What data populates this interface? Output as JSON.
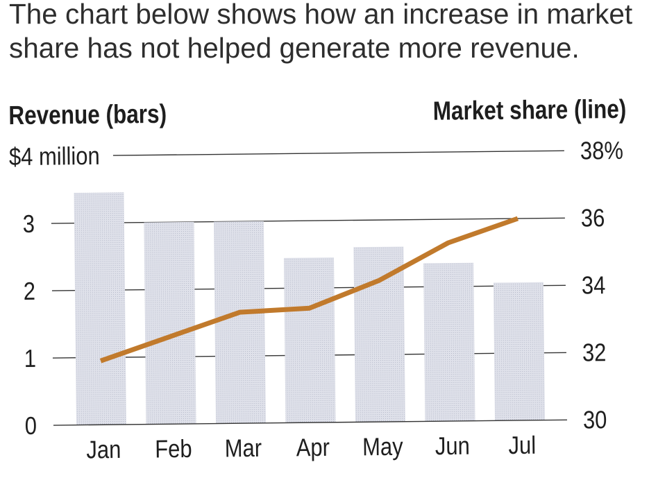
{
  "description": {
    "line1": "The chart below shows how an increase in market",
    "line2": "share has not helped generate more revenue."
  },
  "chart_data": {
    "type": "bar",
    "categories": [
      "Jan",
      "Feb",
      "Mar",
      "Apr",
      "May",
      "Jun",
      "Jul"
    ],
    "ylabel": "Revenue (bars)",
    "y2label": "Market share (line)",
    "ylim": [
      0,
      4
    ],
    "y2lim": [
      30,
      38
    ],
    "yticks": [
      0,
      1,
      2,
      3,
      4
    ],
    "ytick_labels": [
      "0",
      "1",
      "2",
      "3",
      "$4 million"
    ],
    "y2ticks": [
      30,
      32,
      34,
      36,
      38
    ],
    "y2tick_labels": [
      "30",
      "32",
      "34",
      "36",
      "38%"
    ],
    "series": [
      {
        "type": "bar",
        "axis": "left",
        "values": [
          3.45,
          3.0,
          3.0,
          2.45,
          2.6,
          2.35,
          2.05
        ]
      },
      {
        "type": "line",
        "axis": "right",
        "values": [
          31.9,
          32.6,
          33.3,
          33.4,
          34.2,
          35.3,
          36.0
        ]
      }
    ],
    "grid": true,
    "colors": {
      "bars": "#dfe1ea",
      "line": "#c17a2c",
      "grid": "#333333"
    }
  }
}
